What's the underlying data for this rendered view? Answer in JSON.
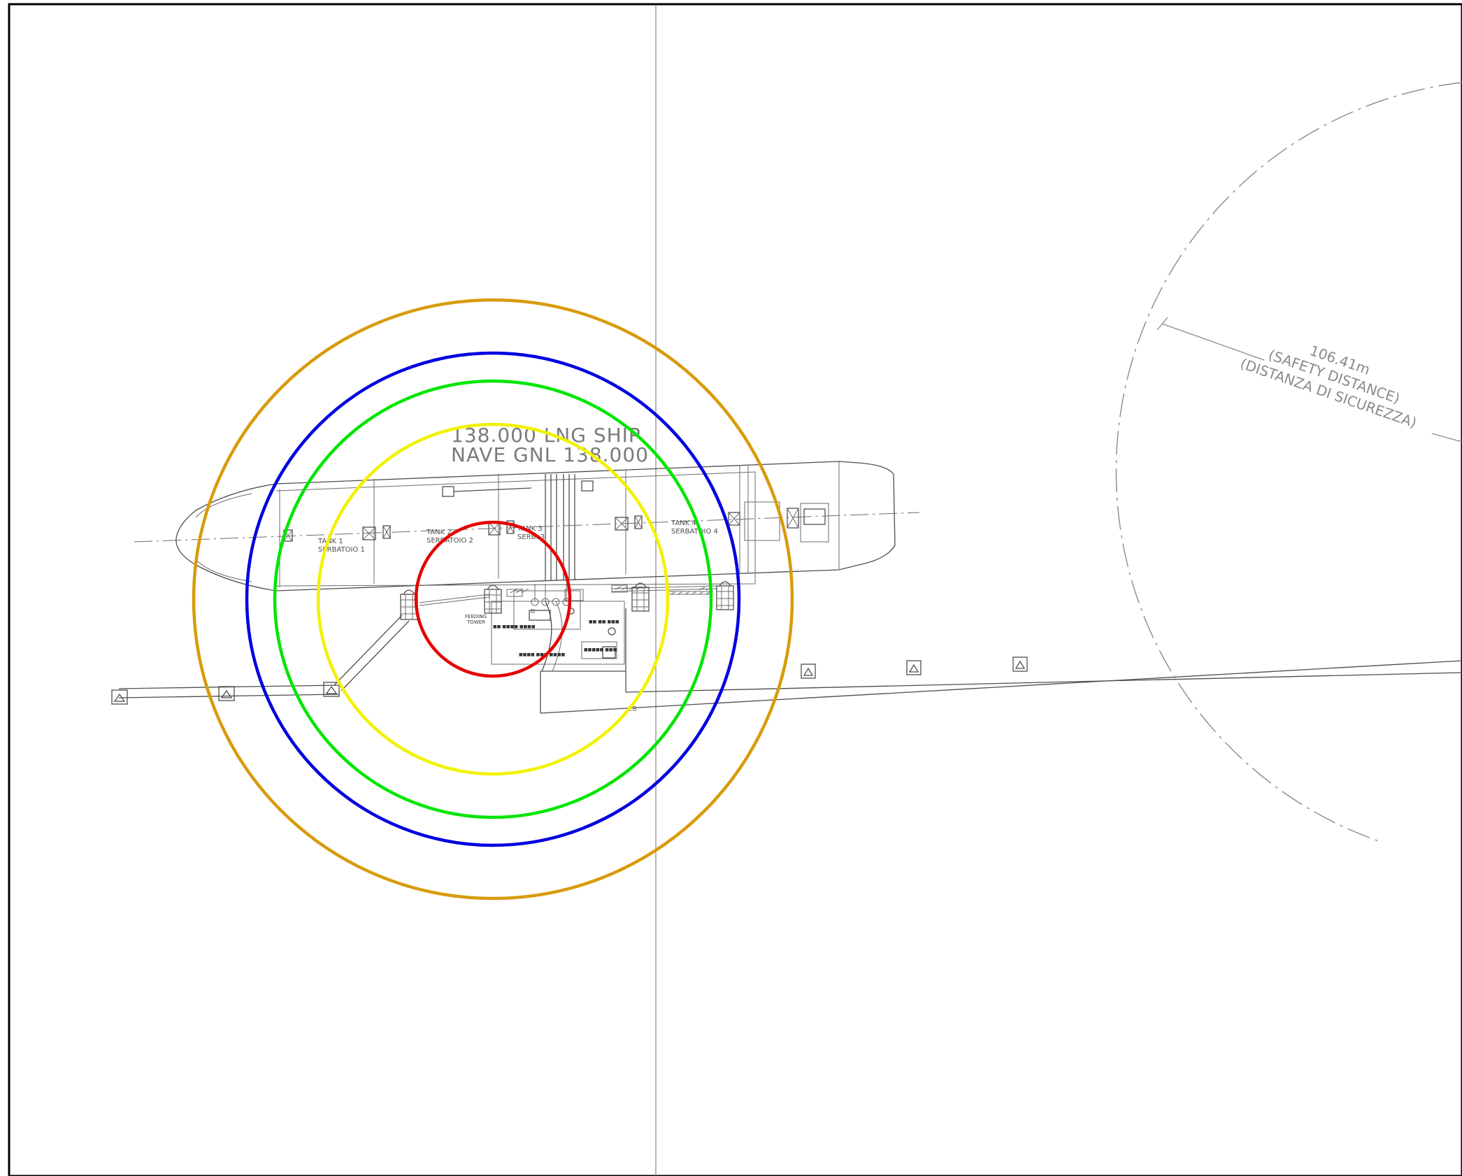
{
  "ship": {
    "title_line1": "138.000 LNG SHIP",
    "title_line2": "NAVE GNL 138.000",
    "tanks": [
      {
        "en": "TANK 1",
        "it": "SERBATOIO 1"
      },
      {
        "en": "TANK 2",
        "it": "SERBATOIO 2"
      },
      {
        "en": "TANK 3",
        "it": "SERB. 3"
      },
      {
        "en": "TANK 4",
        "it": "SERBATOIO 4"
      }
    ]
  },
  "terminal": {
    "feeding_tower_line1": "FEEDING",
    "feeding_tower_line2": "TOWER",
    "elevation_label": "28"
  },
  "safety_zone": {
    "distance": "106.41m",
    "label_en": "(SAFETY DISTANCE)",
    "label_it": "(DISTANZA DI SICUREZZA)"
  },
  "hazard_rings": [
    {
      "level": "red",
      "color": "#e60000"
    },
    {
      "level": "yellow",
      "color": "#f2f200"
    },
    {
      "level": "green",
      "color": "#00e600"
    },
    {
      "level": "blue",
      "color": "#0000e0"
    },
    {
      "level": "orange",
      "color": "#d89b0c"
    }
  ],
  "colors": {
    "line": "#4d4d4d",
    "title_text": "#7a7a7a",
    "safety_line": "#8a8a8a",
    "frame": "#000000"
  }
}
